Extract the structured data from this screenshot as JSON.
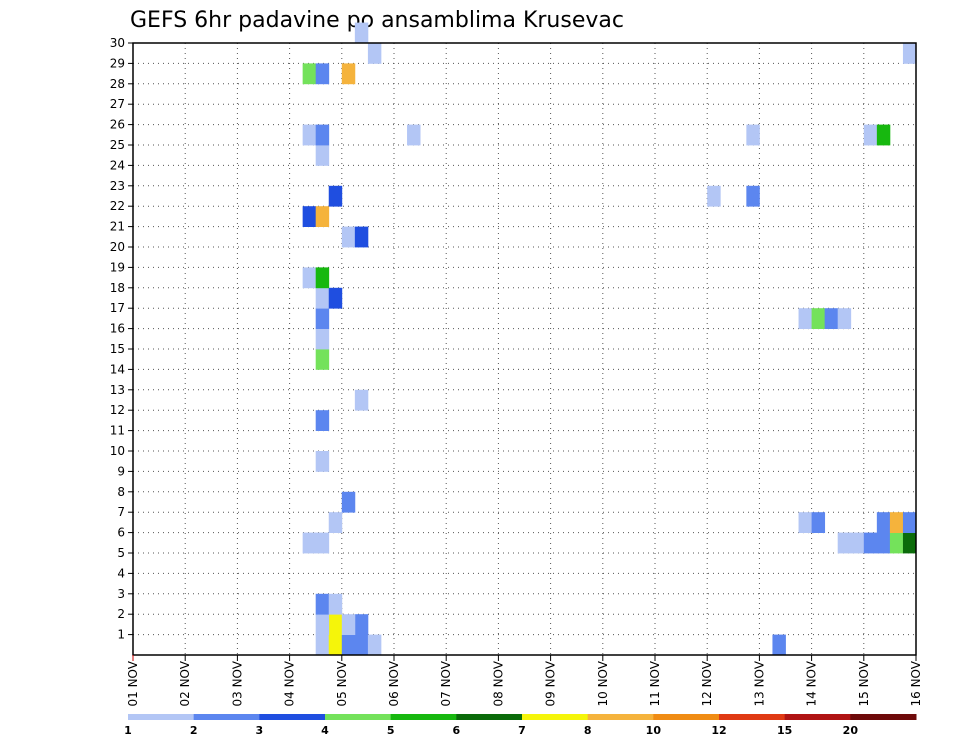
{
  "chart_data": {
    "type": "heatmap",
    "title": "GEFS 6hr padavine po ansamblima Krusevac",
    "xlabel": "",
    "ylabel": "",
    "x_tick_labels": [
      "01 NOV",
      "02 NOV",
      "03 NOV",
      "04 NOV",
      "05 NOV",
      "06 NOV",
      "07 NOV",
      "08 NOV",
      "09 NOV",
      "10 NOV",
      "11 NOV",
      "12 NOV",
      "13 NOV",
      "14 NOV",
      "15 NOV",
      "16 NOV"
    ],
    "y_tick_labels": [
      "1",
      "2",
      "3",
      "4",
      "5",
      "6",
      "7",
      "8",
      "9",
      "10",
      "11",
      "12",
      "13",
      "14",
      "15",
      "16",
      "17",
      "18",
      "19",
      "20",
      "21",
      "22",
      "23",
      "24",
      "25",
      "26",
      "27",
      "28",
      "29",
      "30"
    ],
    "x_range": [
      0,
      60
    ],
    "y_range": [
      0,
      30
    ],
    "steps_per_day": 4,
    "grid": true,
    "legend": {
      "placement": "bottom",
      "levels": [
        "1",
        "2",
        "3",
        "4",
        "5",
        "6",
        "7",
        "8",
        "10",
        "12",
        "15",
        "20"
      ],
      "colors": [
        "#b3c6f5",
        "#5c86ef",
        "#1f4ee0",
        "#74e25b",
        "#17b80f",
        "#0b6b0a",
        "#f5f50a",
        "#f5b33c",
        "#f08c14",
        "#e03a14",
        "#b01414",
        "#6e0a0a"
      ]
    },
    "cells": [
      {
        "x": 14,
        "y": 0,
        "c": 0
      },
      {
        "x": 15,
        "y": 0,
        "c": 6
      },
      {
        "x": 16,
        "y": 0,
        "c": 1
      },
      {
        "x": 17,
        "y": 0,
        "c": 1
      },
      {
        "x": 18,
        "y": 0,
        "c": 0
      },
      {
        "x": 15,
        "y": 1,
        "c": 6
      },
      {
        "x": 17,
        "y": 1,
        "c": 1
      },
      {
        "x": 14,
        "y": 1,
        "c": 0
      },
      {
        "x": 16,
        "y": 1,
        "c": 0
      },
      {
        "x": 14,
        "y": 2,
        "c": 1
      },
      {
        "x": 15,
        "y": 2,
        "c": 0
      },
      {
        "x": 13,
        "y": 5,
        "c": 0
      },
      {
        "x": 14,
        "y": 5,
        "c": 0
      },
      {
        "x": 15,
        "y": 6,
        "c": 0
      },
      {
        "x": 16,
        "y": 7,
        "c": 1
      },
      {
        "x": 14,
        "y": 9,
        "c": 0
      },
      {
        "x": 14,
        "y": 11,
        "c": 1
      },
      {
        "x": 17,
        "y": 12,
        "c": 0
      },
      {
        "x": 14,
        "y": 14,
        "c": 3
      },
      {
        "x": 14,
        "y": 15,
        "c": 0
      },
      {
        "x": 14,
        "y": 16,
        "c": 1
      },
      {
        "x": 14,
        "y": 17,
        "c": 0
      },
      {
        "x": 15,
        "y": 17,
        "c": 2
      },
      {
        "x": 13,
        "y": 18,
        "c": 0
      },
      {
        "x": 14,
        "y": 18,
        "c": 4
      },
      {
        "x": 16,
        "y": 20,
        "c": 0
      },
      {
        "x": 17,
        "y": 20,
        "c": 2
      },
      {
        "x": 13,
        "y": 21,
        "c": 2
      },
      {
        "x": 14,
        "y": 21,
        "c": 7
      },
      {
        "x": 15,
        "y": 22,
        "c": 2
      },
      {
        "x": 14,
        "y": 24,
        "c": 0
      },
      {
        "x": 13,
        "y": 25,
        "c": 0
      },
      {
        "x": 14,
        "y": 25,
        "c": 1
      },
      {
        "x": 13,
        "y": 28,
        "c": 3
      },
      {
        "x": 14,
        "y": 28,
        "c": 1
      },
      {
        "x": 16,
        "y": 28,
        "c": 7
      },
      {
        "x": 18,
        "y": 29,
        "c": 0
      },
      {
        "x": 17,
        "y": 30,
        "c": 0
      },
      {
        "x": 21,
        "y": 25,
        "c": 0
      },
      {
        "x": 44,
        "y": 22,
        "c": 0
      },
      {
        "x": 47,
        "y": 22,
        "c": 1
      },
      {
        "x": 47,
        "y": 25,
        "c": 0
      },
      {
        "x": 49,
        "y": 0,
        "c": 1
      },
      {
        "x": 51,
        "y": 6,
        "c": 0
      },
      {
        "x": 52,
        "y": 6,
        "c": 1
      },
      {
        "x": 51,
        "y": 16,
        "c": 0
      },
      {
        "x": 52,
        "y": 16,
        "c": 3
      },
      {
        "x": 53,
        "y": 16,
        "c": 1
      },
      {
        "x": 54,
        "y": 16,
        "c": 0
      },
      {
        "x": 54,
        "y": 5,
        "c": 0
      },
      {
        "x": 55,
        "y": 5,
        "c": 0
      },
      {
        "x": 56,
        "y": 5,
        "c": 1
      },
      {
        "x": 57,
        "y": 5,
        "c": 1
      },
      {
        "x": 58,
        "y": 5,
        "c": 3
      },
      {
        "x": 59,
        "y": 5,
        "c": 5
      },
      {
        "x": 57,
        "y": 6,
        "c": 1
      },
      {
        "x": 58,
        "y": 6,
        "c": 7
      },
      {
        "x": 59,
        "y": 6,
        "c": 1
      },
      {
        "x": 56,
        "y": 25,
        "c": 0
      },
      {
        "x": 57,
        "y": 25,
        "c": 4
      },
      {
        "x": 59,
        "y": 29,
        "c": 0
      }
    ]
  }
}
